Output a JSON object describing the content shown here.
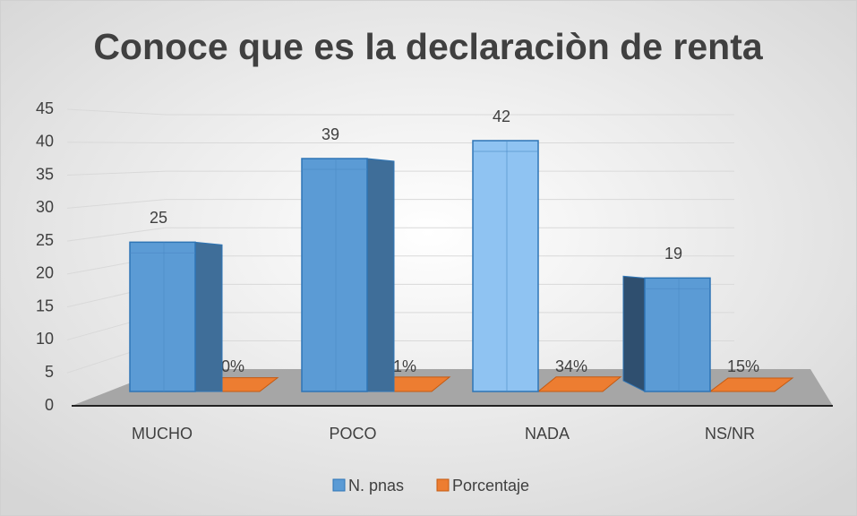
{
  "chart_data": {
    "type": "bar3d",
    "title": "Conoce que es la declaraciòn de renta",
    "categories": [
      "MUCHO",
      "POCO",
      "NADA",
      "NS/NR"
    ],
    "series": [
      {
        "name": "N. pnas",
        "color": "#5b9bd5",
        "values": [
          25,
          39,
          42,
          19
        ],
        "value_labels": [
          "25",
          "39",
          "42",
          "19"
        ]
      },
      {
        "name": "Porcentaje",
        "color": "#ed7d31",
        "values": [
          0.2,
          0.31,
          0.34,
          0.15
        ],
        "value_labels": [
          "20%",
          "31%",
          "34%",
          "15%"
        ]
      }
    ],
    "ylim": [
      0,
      45
    ],
    "yticks": [
      0,
      5,
      10,
      15,
      20,
      25,
      30,
      35,
      40,
      45
    ],
    "grid": true,
    "legend": "bottom"
  }
}
